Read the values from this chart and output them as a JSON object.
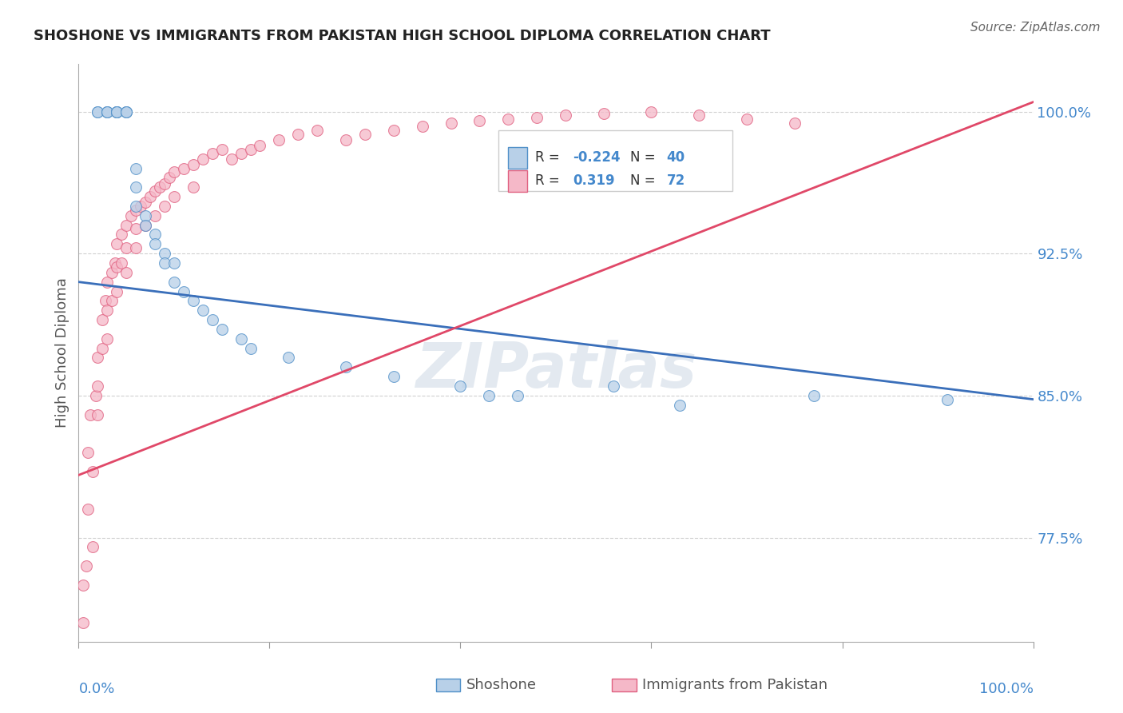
{
  "title": "SHOSHONE VS IMMIGRANTS FROM PAKISTAN HIGH SCHOOL DIPLOMA CORRELATION CHART",
  "source": "Source: ZipAtlas.com",
  "ylabel": "High School Diploma",
  "watermark": "ZIPatlas",
  "xlim": [
    0.0,
    1.0
  ],
  "ylim": [
    0.72,
    1.025
  ],
  "yticks": [
    0.775,
    0.85,
    0.925,
    1.0
  ],
  "ytick_labels": [
    "77.5%",
    "85.0%",
    "92.5%",
    "100.0%"
  ],
  "legend_r_blue": "-0.224",
  "legend_n_blue": "40",
  "legend_r_pink": "0.319",
  "legend_n_pink": "72",
  "blue_fill": "#b8d0e8",
  "pink_fill": "#f5b8c8",
  "blue_edge": "#5090c8",
  "pink_edge": "#e06080",
  "blue_line": "#3a6fba",
  "pink_line": "#e04868",
  "axis_color": "#4488cc",
  "grid_color": "#cccccc",
  "shoshone_x": [
    0.02,
    0.02,
    0.03,
    0.03,
    0.03,
    0.04,
    0.04,
    0.04,
    0.04,
    0.05,
    0.05,
    0.05,
    0.06,
    0.06,
    0.06,
    0.07,
    0.07,
    0.08,
    0.08,
    0.09,
    0.09,
    0.1,
    0.1,
    0.11,
    0.12,
    0.13,
    0.14,
    0.15,
    0.17,
    0.18,
    0.22,
    0.28,
    0.33,
    0.4,
    0.43,
    0.46,
    0.56,
    0.63,
    0.77,
    0.91
  ],
  "shoshone_y": [
    1.0,
    1.0,
    1.0,
    1.0,
    1.0,
    1.0,
    1.0,
    1.0,
    1.0,
    1.0,
    1.0,
    1.0,
    0.97,
    0.96,
    0.95,
    0.945,
    0.94,
    0.935,
    0.93,
    0.925,
    0.92,
    0.92,
    0.91,
    0.905,
    0.9,
    0.895,
    0.89,
    0.885,
    0.88,
    0.875,
    0.87,
    0.865,
    0.86,
    0.855,
    0.85,
    0.85,
    0.855,
    0.845,
    0.85,
    0.848
  ],
  "pakistan_x": [
    0.005,
    0.005,
    0.008,
    0.01,
    0.01,
    0.012,
    0.015,
    0.015,
    0.018,
    0.02,
    0.02,
    0.02,
    0.025,
    0.025,
    0.028,
    0.03,
    0.03,
    0.03,
    0.035,
    0.035,
    0.038,
    0.04,
    0.04,
    0.04,
    0.045,
    0.045,
    0.05,
    0.05,
    0.05,
    0.055,
    0.06,
    0.06,
    0.06,
    0.065,
    0.07,
    0.07,
    0.075,
    0.08,
    0.08,
    0.085,
    0.09,
    0.09,
    0.095,
    0.1,
    0.1,
    0.11,
    0.12,
    0.12,
    0.13,
    0.14,
    0.15,
    0.16,
    0.17,
    0.18,
    0.19,
    0.21,
    0.23,
    0.25,
    0.28,
    0.3,
    0.33,
    0.36,
    0.39,
    0.42,
    0.45,
    0.48,
    0.51,
    0.55,
    0.6,
    0.65,
    0.7,
    0.75
  ],
  "pakistan_y": [
    0.75,
    0.73,
    0.76,
    0.82,
    0.79,
    0.84,
    0.77,
    0.81,
    0.85,
    0.87,
    0.855,
    0.84,
    0.89,
    0.875,
    0.9,
    0.91,
    0.895,
    0.88,
    0.915,
    0.9,
    0.92,
    0.93,
    0.918,
    0.905,
    0.935,
    0.92,
    0.94,
    0.928,
    0.915,
    0.945,
    0.948,
    0.938,
    0.928,
    0.95,
    0.952,
    0.94,
    0.955,
    0.958,
    0.945,
    0.96,
    0.962,
    0.95,
    0.965,
    0.968,
    0.955,
    0.97,
    0.972,
    0.96,
    0.975,
    0.978,
    0.98,
    0.975,
    0.978,
    0.98,
    0.982,
    0.985,
    0.988,
    0.99,
    0.985,
    0.988,
    0.99,
    0.992,
    0.994,
    0.995,
    0.996,
    0.997,
    0.998,
    0.999,
    1.0,
    0.998,
    0.996,
    0.994
  ],
  "blue_trendline_x": [
    0.0,
    1.0
  ],
  "blue_trendline_y": [
    0.91,
    0.848
  ],
  "pink_trendline_x": [
    0.0,
    1.0
  ],
  "pink_trendline_y": [
    0.808,
    1.005
  ]
}
